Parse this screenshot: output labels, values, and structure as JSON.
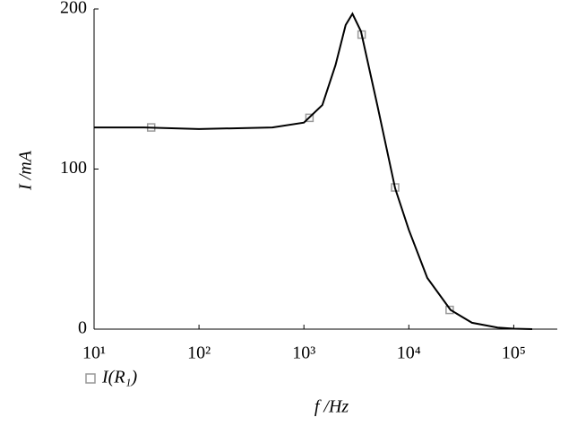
{
  "chart_data": {
    "type": "line",
    "xlabel": "f /Hz",
    "ylabel": "I /mA",
    "xscale": "log",
    "xlim": [
      10,
      260000
    ],
    "ylim": [
      0,
      200
    ],
    "xticks": [
      {
        "value": 10,
        "label": "10¹"
      },
      {
        "value": 100,
        "label": "10²"
      },
      {
        "value": 1000,
        "label": "10³"
      },
      {
        "value": 10000,
        "label": "10⁴"
      },
      {
        "value": 100000,
        "label": "10⁵"
      }
    ],
    "yticks": [
      0,
      100,
      200
    ],
    "legend": "bottom-left",
    "series": [
      {
        "name": "I(R₁)",
        "marker": "square",
        "color": "#999999",
        "x": [
          35,
          1130,
          3550,
          7400,
          24500
        ],
        "values": [
          126,
          132,
          184,
          88.5,
          12
        ]
      },
      {
        "color": "#000000",
        "x": [
          10,
          30,
          100,
          500,
          1000,
          1500,
          2000,
          2500,
          2900,
          3500,
          5000,
          7400,
          10000,
          15000,
          25000,
          40000,
          70000,
          100000,
          150000
        ],
        "values": [
          126,
          126,
          125,
          126,
          129,
          140,
          165,
          190,
          197,
          186,
          140,
          88,
          62,
          32,
          12,
          4,
          1,
          0.3,
          0
        ]
      }
    ]
  }
}
